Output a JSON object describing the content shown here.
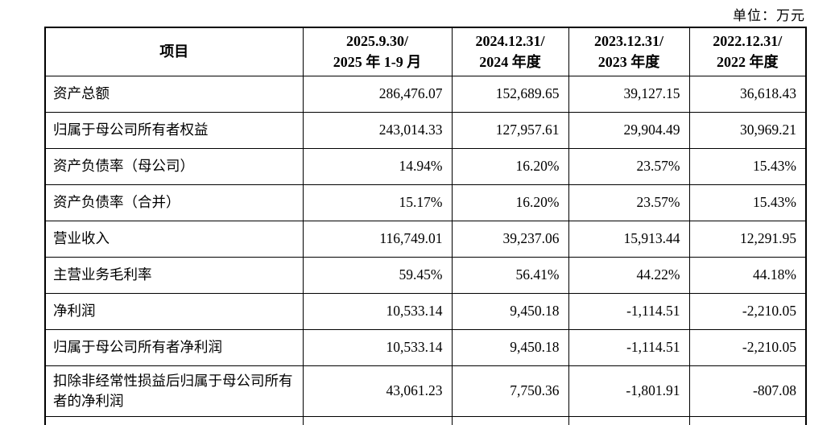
{
  "unit_label": "单位：万元",
  "table": {
    "headers": [
      {
        "line1": "项目",
        "line2": ""
      },
      {
        "line1": "2025.9.30/",
        "line2": "2025 年 1-9 月"
      },
      {
        "line1": "2024.12.31/",
        "line2": "2024 年度"
      },
      {
        "line1": "2023.12.31/",
        "line2": "2023 年度"
      },
      {
        "line1": "2022.12.31/",
        "line2": "2022 年度"
      }
    ],
    "rows": [
      {
        "label": "资产总额",
        "values": [
          "286,476.07",
          "152,689.65",
          "39,127.15",
          "36,618.43"
        ]
      },
      {
        "label": "归属于母公司所有者权益",
        "values": [
          "243,014.33",
          "127,957.61",
          "29,904.49",
          "30,969.21"
        ]
      },
      {
        "label": "资产负债率（母公司）",
        "values": [
          "14.94%",
          "16.20%",
          "23.57%",
          "15.43%"
        ]
      },
      {
        "label": "资产负债率（合并）",
        "values": [
          "15.17%",
          "16.20%",
          "23.57%",
          "15.43%"
        ]
      },
      {
        "label": "营业收入",
        "values": [
          "116,749.01",
          "39,237.06",
          "15,913.44",
          "12,291.95"
        ]
      },
      {
        "label": "主营业务毛利率",
        "values": [
          "59.45%",
          "56.41%",
          "44.22%",
          "44.18%"
        ]
      },
      {
        "label": "净利润",
        "values": [
          "10,533.14",
          "9,450.18",
          "-1,114.51",
          "-2,210.05"
        ]
      },
      {
        "label": "归属于母公司所有者净利润",
        "values": [
          "10,533.14",
          "9,450.18",
          "-1,114.51",
          "-2,210.05"
        ]
      },
      {
        "label": "扣除非经常性损益后归属于母公司所有者的净利润",
        "values": [
          "43,061.23",
          "7,750.36",
          "-1,801.91",
          "-807.08"
        ]
      }
    ]
  }
}
